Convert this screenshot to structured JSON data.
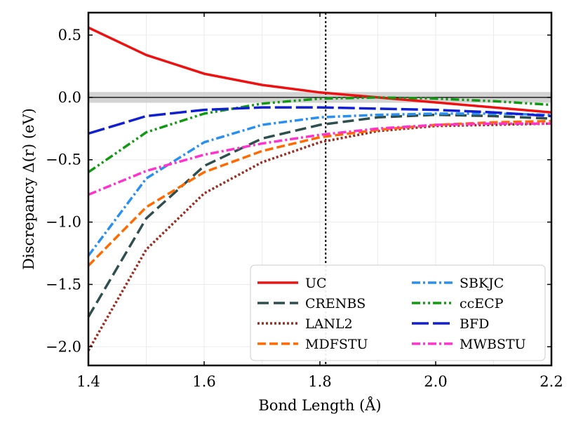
{
  "chart_data": {
    "type": "line",
    "title": "",
    "xlabel": "Bond Length (Å)",
    "ylabel": "Discrepancy Δ(r) (eV)",
    "xlim": [
      1.4,
      2.2
    ],
    "ylim": [
      -2.15,
      0.68
    ],
    "xticks": [
      1.4,
      1.6,
      1.8,
      2.0,
      2.2
    ],
    "xtick_labels": [
      "1.4",
      "1.6",
      "1.8",
      "2.0",
      "2.2"
    ],
    "yticks": [
      0.5,
      0.0,
      -0.5,
      -1.0,
      -1.5,
      -2.0
    ],
    "ytick_labels": [
      "0.5",
      "0.0",
      "−0.5",
      "−1.0",
      "−1.5",
      "−2.0"
    ],
    "grid": true,
    "legend_position": "bottom-right",
    "reference_band": {
      "center": 0.0,
      "halfwidth": 0.043,
      "color": "#c8c8c8"
    },
    "vertical_reference_line": {
      "x": 1.81,
      "style": "dotted"
    },
    "x": [
      1.4,
      1.5,
      1.6,
      1.7,
      1.8,
      1.9,
      2.0,
      2.1,
      2.2
    ],
    "series": [
      {
        "name": "UC",
        "color": "#ee1111",
        "dash": "",
        "values": [
          0.56,
          0.34,
          0.19,
          0.1,
          0.04,
          0.0,
          -0.04,
          -0.08,
          -0.12
        ]
      },
      {
        "name": "CRENBS",
        "color": "#2f4f4f",
        "dash": "16 7",
        "values": [
          -1.76,
          -0.97,
          -0.55,
          -0.33,
          -0.22,
          -0.16,
          -0.14,
          -0.15,
          -0.17
        ]
      },
      {
        "name": "LANL2",
        "color": "#9b2d20",
        "dash": "3 3",
        "values": [
          -2.03,
          -1.22,
          -0.77,
          -0.52,
          -0.36,
          -0.27,
          -0.23,
          -0.22,
          -0.21
        ]
      },
      {
        "name": "MDFSTU",
        "color": "#ff6a00",
        "dash": "12 5",
        "values": [
          -1.35,
          -0.88,
          -0.6,
          -0.43,
          -0.32,
          -0.26,
          -0.22,
          -0.2,
          -0.19
        ]
      },
      {
        "name": "SBKJC",
        "color": "#2a90f0",
        "dash": "12 4 3 4",
        "values": [
          -1.27,
          -0.65,
          -0.36,
          -0.22,
          -0.16,
          -0.14,
          -0.13,
          -0.13,
          -0.14
        ]
      },
      {
        "name": "ccECP",
        "color": "#119911",
        "dash": "12 4 3 4 3 4",
        "values": [
          -0.6,
          -0.28,
          -0.13,
          -0.05,
          -0.01,
          0.0,
          -0.01,
          -0.03,
          -0.06
        ]
      },
      {
        "name": "BFD",
        "color": "#1020d0",
        "dash": "24 6",
        "values": [
          -0.29,
          -0.15,
          -0.1,
          -0.08,
          -0.08,
          -0.09,
          -0.1,
          -0.12,
          -0.15
        ]
      },
      {
        "name": "MWBSTU",
        "color": "#ff33cc",
        "dash": "12 4 3 4",
        "values": [
          -0.78,
          -0.59,
          -0.46,
          -0.37,
          -0.3,
          -0.25,
          -0.22,
          -0.21,
          -0.21
        ]
      }
    ]
  }
}
